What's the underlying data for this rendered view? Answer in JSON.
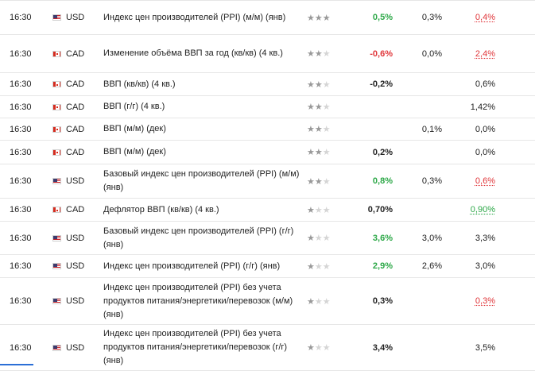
{
  "events": [
    {
      "time": "16:30",
      "flag": "us",
      "currency": "USD",
      "name": "Индекс цен производителей (PPI) (м/м) (янв)",
      "stars": 3,
      "actual": "0,5%",
      "actual_tone": "good",
      "forecast": "0,3%",
      "previous": "0,4%",
      "previous_tone": "bad"
    },
    {
      "time": "16:30",
      "flag": "ca",
      "currency": "CAD",
      "name": "Изменение объёма ВВП за год (кв/кв) (4 кв.)",
      "stars": 2,
      "actual": "-0,6%",
      "actual_tone": "bad",
      "forecast": "0,0%",
      "previous": "2,4%",
      "previous_tone": "bad"
    },
    {
      "time": "16:30",
      "flag": "ca",
      "currency": "CAD",
      "name": "ВВП (кв/кв) (4 кв.)",
      "stars": 2,
      "actual": "-0,2%",
      "actual_tone": "neutral",
      "forecast": "",
      "previous": "0,6%",
      "previous_tone": "neutral"
    },
    {
      "time": "16:30",
      "flag": "ca",
      "currency": "CAD",
      "name": "ВВП (г/г) (4 кв.)",
      "stars": 2,
      "actual": "",
      "actual_tone": "neutral",
      "forecast": "",
      "previous": "1,42%",
      "previous_tone": "neutral"
    },
    {
      "time": "16:30",
      "flag": "ca",
      "currency": "CAD",
      "name": "ВВП (м/м) (дек)",
      "stars": 2,
      "actual": "",
      "actual_tone": "neutral",
      "forecast": "0,1%",
      "previous": "0,0%",
      "previous_tone": "neutral"
    },
    {
      "time": "16:30",
      "flag": "ca",
      "currency": "CAD",
      "name": "ВВП (м/м) (дек)",
      "stars": 2,
      "actual": "0,2%",
      "actual_tone": "neutral",
      "forecast": "",
      "previous": "0,0%",
      "previous_tone": "neutral"
    },
    {
      "time": "16:30",
      "flag": "us",
      "currency": "USD",
      "name": "Базовый индекс цен производителей (PPI) (м/м) (янв)",
      "stars": 2,
      "actual": "0,8%",
      "actual_tone": "good",
      "forecast": "0,3%",
      "previous": "0,6%",
      "previous_tone": "bad"
    },
    {
      "time": "16:30",
      "flag": "ca",
      "currency": "CAD",
      "name": "Дефлятор ВВП (кв/кв) (4 кв.)",
      "stars": 1,
      "actual": "0,70%",
      "actual_tone": "neutral",
      "forecast": "",
      "previous": "0,90%",
      "previous_tone": "good"
    },
    {
      "time": "16:30",
      "flag": "us",
      "currency": "USD",
      "name": "Базовый индекс цен производителей (PPI) (г/г) (янв)",
      "stars": 1,
      "actual": "3,6%",
      "actual_tone": "good",
      "forecast": "3,0%",
      "previous": "3,3%",
      "previous_tone": "neutral"
    },
    {
      "time": "16:30",
      "flag": "us",
      "currency": "USD",
      "name": "Индекс цен производителей (PPI) (г/г) (янв)",
      "stars": 1,
      "actual": "2,9%",
      "actual_tone": "good",
      "forecast": "2,6%",
      "previous": "3,0%",
      "previous_tone": "neutral"
    },
    {
      "time": "16:30",
      "flag": "us",
      "currency": "USD",
      "name": "Индекс цен производителей (PPI) без учета продуктов питания/энергетики/перевозок (м/м) (янв)",
      "stars": 1,
      "actual": "0,3%",
      "actual_tone": "neutral",
      "forecast": "",
      "previous": "0,3%",
      "previous_tone": "bad"
    },
    {
      "time": "16:30",
      "flag": "us",
      "currency": "USD",
      "name": "Индекс цен производителей (PPI) без учета продуктов питания/энергетики/перевозок (г/г) (янв)",
      "stars": 1,
      "actual": "3,4%",
      "actual_tone": "neutral",
      "forecast": "",
      "previous": "3,5%",
      "previous_tone": "neutral"
    }
  ],
  "colors": {
    "positive": "#2da848",
    "negative": "#e0363a",
    "star_active": "#999999",
    "star_inactive": "#d5d5d5",
    "accent": "#2b6fd6"
  },
  "icons": {
    "star": "star-icon",
    "flag_us": "us-flag-icon",
    "flag_ca": "canada-flag-icon"
  }
}
